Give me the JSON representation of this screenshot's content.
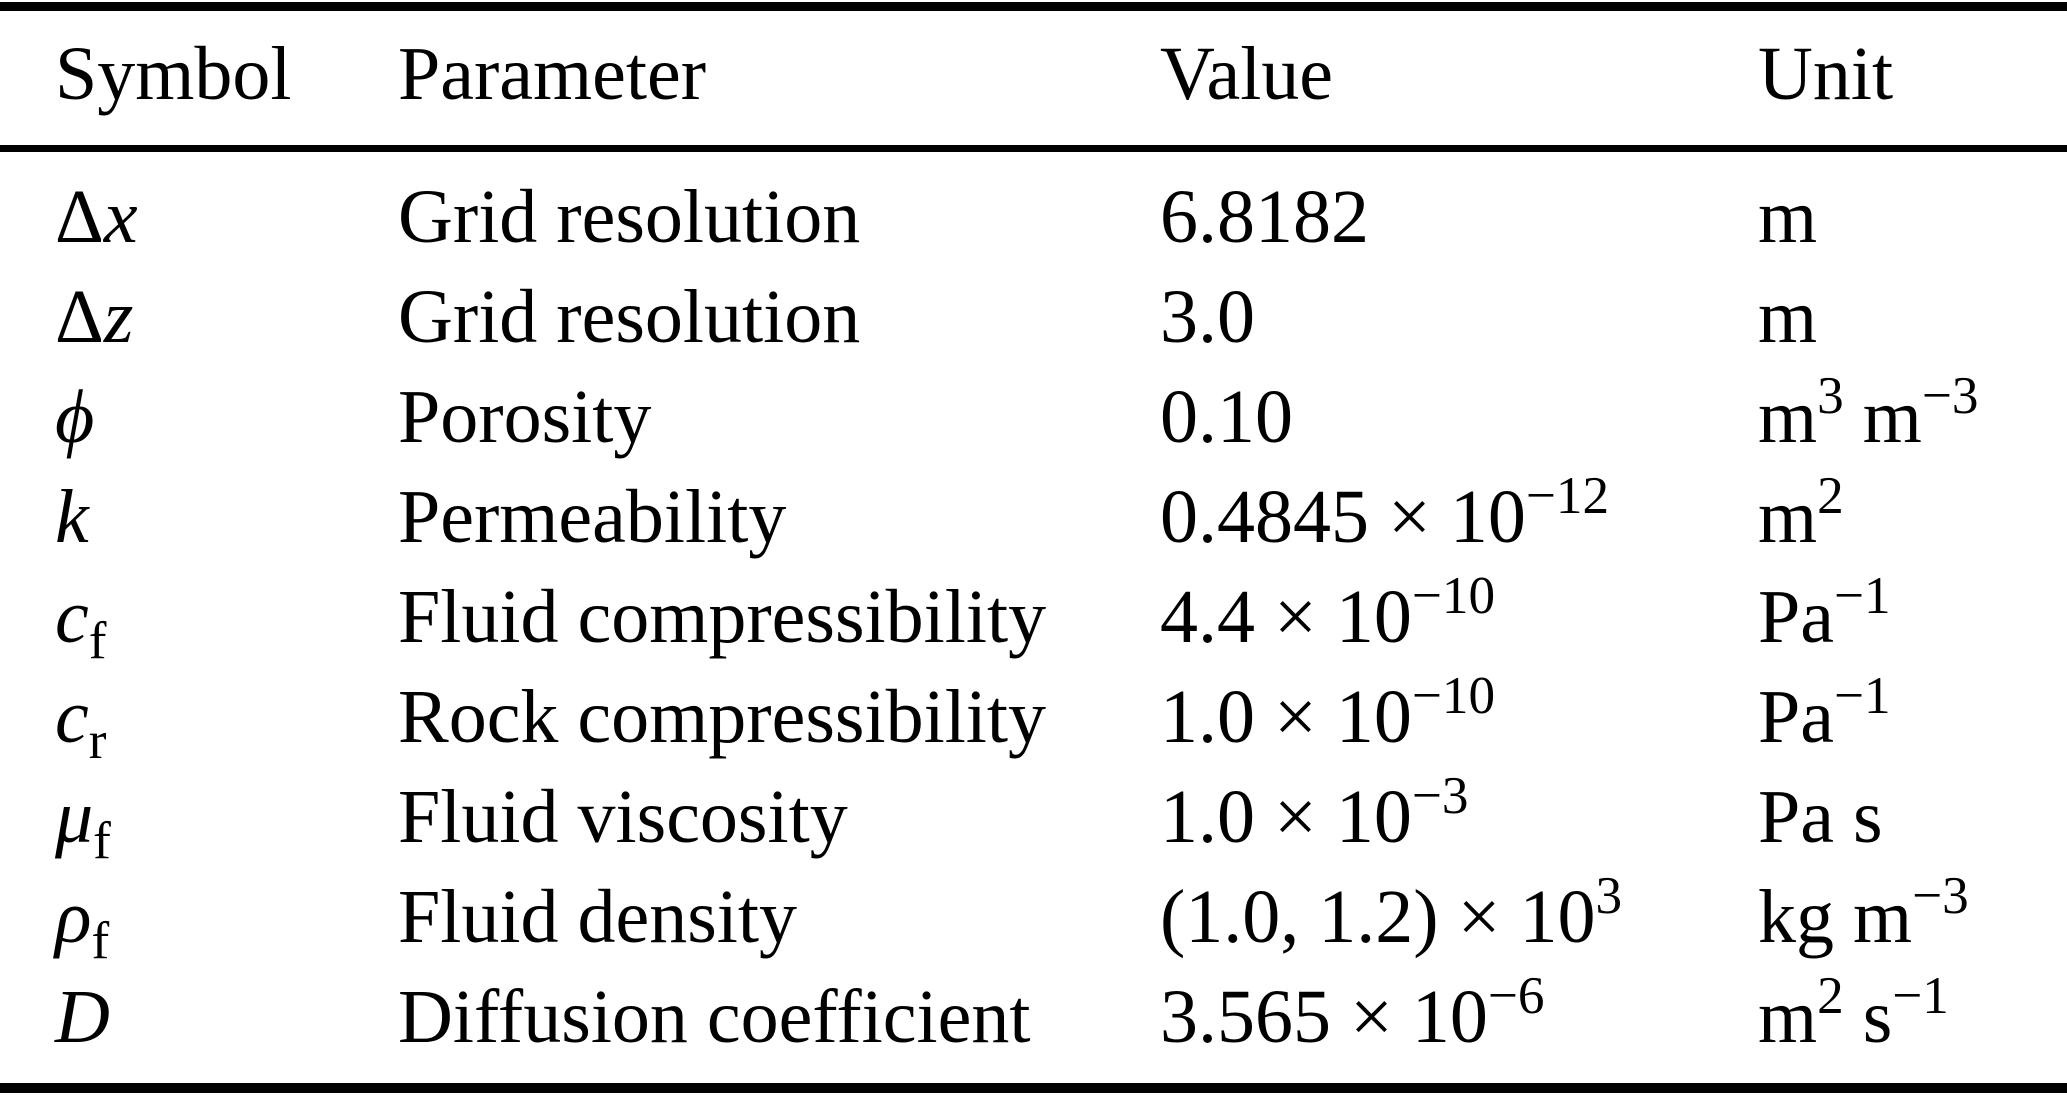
{
  "page": {
    "background_color": "#ffffff",
    "text_color": "#000000",
    "rule_color": "#000000"
  },
  "table": {
    "columns": [
      "Symbol",
      "Parameter",
      "Value",
      "Unit"
    ],
    "rows": [
      {
        "symbol": [
          [
            "Δ",
            "up"
          ],
          [
            "x",
            "it"
          ]
        ],
        "parameter": [
          [
            "Grid resolution",
            "up"
          ]
        ],
        "value": [
          [
            "6.8182",
            "up"
          ]
        ],
        "unit": [
          [
            "m",
            "up"
          ]
        ]
      },
      {
        "symbol": [
          [
            "Δ",
            "up"
          ],
          [
            "z",
            "it"
          ]
        ],
        "parameter": [
          [
            "Grid resolution",
            "up"
          ]
        ],
        "value": [
          [
            "3.0",
            "up"
          ]
        ],
        "unit": [
          [
            "m",
            "up"
          ]
        ]
      },
      {
        "symbol": [
          [
            "ϕ",
            "it"
          ]
        ],
        "parameter": [
          [
            "Porosity",
            "up"
          ]
        ],
        "value": [
          [
            "0.10",
            "up"
          ]
        ],
        "unit": [
          [
            "m",
            "up"
          ],
          [
            "3",
            "sup"
          ],
          [
            " m",
            "up"
          ],
          [
            "−3",
            "sup"
          ]
        ]
      },
      {
        "symbol": [
          [
            "k",
            "it"
          ]
        ],
        "parameter": [
          [
            "Permeability",
            "up"
          ]
        ],
        "value": [
          [
            "0.4845 × 10",
            "up"
          ],
          [
            "−12",
            "sup"
          ]
        ],
        "unit": [
          [
            "m",
            "up"
          ],
          [
            "2",
            "sup"
          ]
        ]
      },
      {
        "symbol": [
          [
            "c",
            "it"
          ],
          [
            "f",
            "sub"
          ]
        ],
        "parameter": [
          [
            "Fluid compressibility",
            "up"
          ]
        ],
        "value": [
          [
            "4.4 × 10",
            "up"
          ],
          [
            "−10",
            "sup"
          ]
        ],
        "unit": [
          [
            "Pa",
            "up"
          ],
          [
            "−1",
            "sup"
          ]
        ]
      },
      {
        "symbol": [
          [
            "c",
            "it"
          ],
          [
            "r",
            "sub"
          ]
        ],
        "parameter": [
          [
            "Rock compressibility",
            "up"
          ]
        ],
        "value": [
          [
            "1.0 × 10",
            "up"
          ],
          [
            "−10",
            "sup"
          ]
        ],
        "unit": [
          [
            "Pa",
            "up"
          ],
          [
            "−1",
            "sup"
          ]
        ]
      },
      {
        "symbol": [
          [
            "μ",
            "it"
          ],
          [
            "f",
            "sub"
          ]
        ],
        "parameter": [
          [
            "Fluid viscosity",
            "up"
          ]
        ],
        "value": [
          [
            "1.0 × 10",
            "up"
          ],
          [
            "−3",
            "sup"
          ]
        ],
        "unit": [
          [
            "Pa s",
            "up"
          ]
        ]
      },
      {
        "symbol": [
          [
            "ρ",
            "it"
          ],
          [
            "f",
            "sub"
          ]
        ],
        "parameter": [
          [
            "Fluid density",
            "up"
          ]
        ],
        "value": [
          [
            "(1.0, 1.2) × 10",
            "up"
          ],
          [
            "3",
            "sup"
          ]
        ],
        "unit": [
          [
            "kg m",
            "up"
          ],
          [
            "−3",
            "sup"
          ]
        ]
      },
      {
        "symbol": [
          [
            "D",
            "it"
          ]
        ],
        "parameter": [
          [
            "Diffusion coefficient",
            "up"
          ]
        ],
        "value": [
          [
            "3.565 × 10",
            "up"
          ],
          [
            "−6",
            "sup"
          ]
        ],
        "unit": [
          [
            "m",
            "up"
          ],
          [
            "2",
            "sup"
          ],
          [
            " s",
            "up"
          ],
          [
            "−1",
            "sup"
          ]
        ]
      }
    ]
  },
  "chart_data": {
    "type": "table",
    "columns": [
      "Symbol",
      "Parameter",
      "Value",
      "Unit"
    ],
    "rows": [
      [
        "Δx",
        "Grid resolution",
        "6.8182",
        "m"
      ],
      [
        "Δz",
        "Grid resolution",
        "3.0",
        "m"
      ],
      [
        "ϕ",
        "Porosity",
        "0.10",
        "m³ m⁻³"
      ],
      [
        "k",
        "Permeability",
        "0.4845 × 10⁻¹²",
        "m²"
      ],
      [
        "c_f",
        "Fluid compressibility",
        "4.4 × 10⁻¹⁰",
        "Pa⁻¹"
      ],
      [
        "c_r",
        "Rock compressibility",
        "1.0 × 10⁻¹⁰",
        "Pa⁻¹"
      ],
      [
        "μ_f",
        "Fluid viscosity",
        "1.0 × 10⁻³",
        "Pa s"
      ],
      [
        "ρ_f",
        "Fluid density",
        "(1.0, 1.2) × 10³",
        "kg m⁻³"
      ],
      [
        "D",
        "Diffusion coefficient",
        "3.565 × 10⁻⁶",
        "m² s⁻¹"
      ]
    ]
  }
}
